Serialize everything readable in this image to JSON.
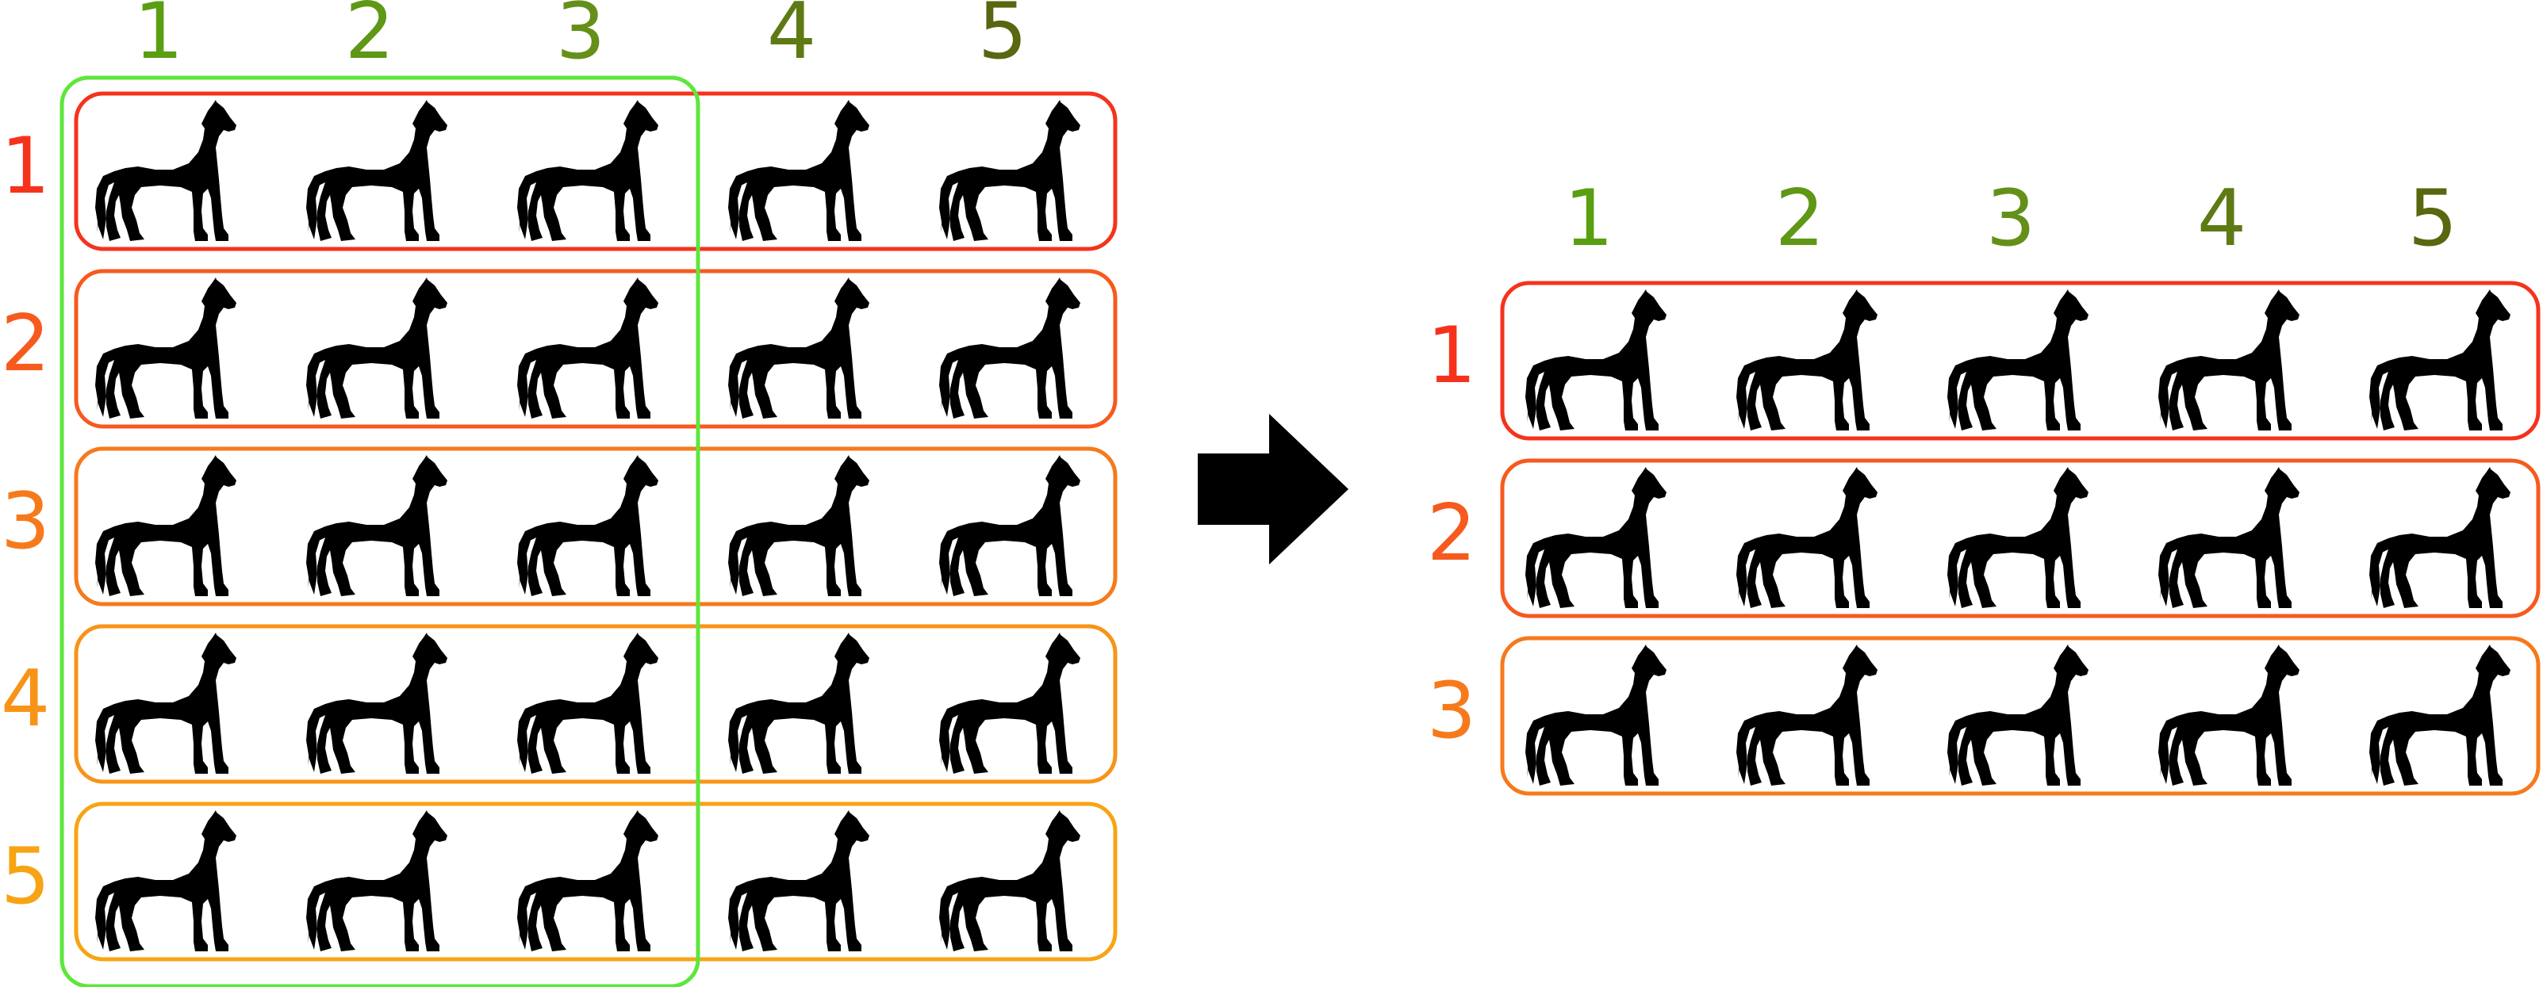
{
  "left_grid": {
    "column_labels": [
      "1",
      "2",
      "3",
      "4",
      "5"
    ],
    "row_labels": [
      "1",
      "2",
      "3",
      "4",
      "5"
    ],
    "column_label_colors": [
      "#5a9e12",
      "#5f9716",
      "#64901a",
      "#5e7a14",
      "#5a6610"
    ],
    "row_label_colors": [
      "#f5331c",
      "#f65a1e",
      "#f67a1c",
      "#f79418",
      "#f7a414"
    ],
    "row_box_colors": [
      "#f5331c",
      "#f65a1e",
      "#f67a1c",
      "#f79418",
      "#f7a414"
    ],
    "selection_color": "#5ee63c",
    "selected_columns": 3,
    "icon": "horse-icon"
  },
  "arrow": {
    "icon": "right-arrow-icon",
    "color": "#000000"
  },
  "right_grid": {
    "column_labels": [
      "1",
      "2",
      "3",
      "4",
      "5"
    ],
    "row_labels": [
      "1",
      "2",
      "3"
    ],
    "column_label_colors": [
      "#5a9e12",
      "#5f9716",
      "#64901a",
      "#5e7a14",
      "#5a6610"
    ],
    "row_label_colors": [
      "#f5331c",
      "#f65a1e",
      "#f67a1c"
    ],
    "row_box_colors": [
      "#f5331c",
      "#f65a1e",
      "#f67a1c"
    ],
    "icon": "horse-icon"
  }
}
